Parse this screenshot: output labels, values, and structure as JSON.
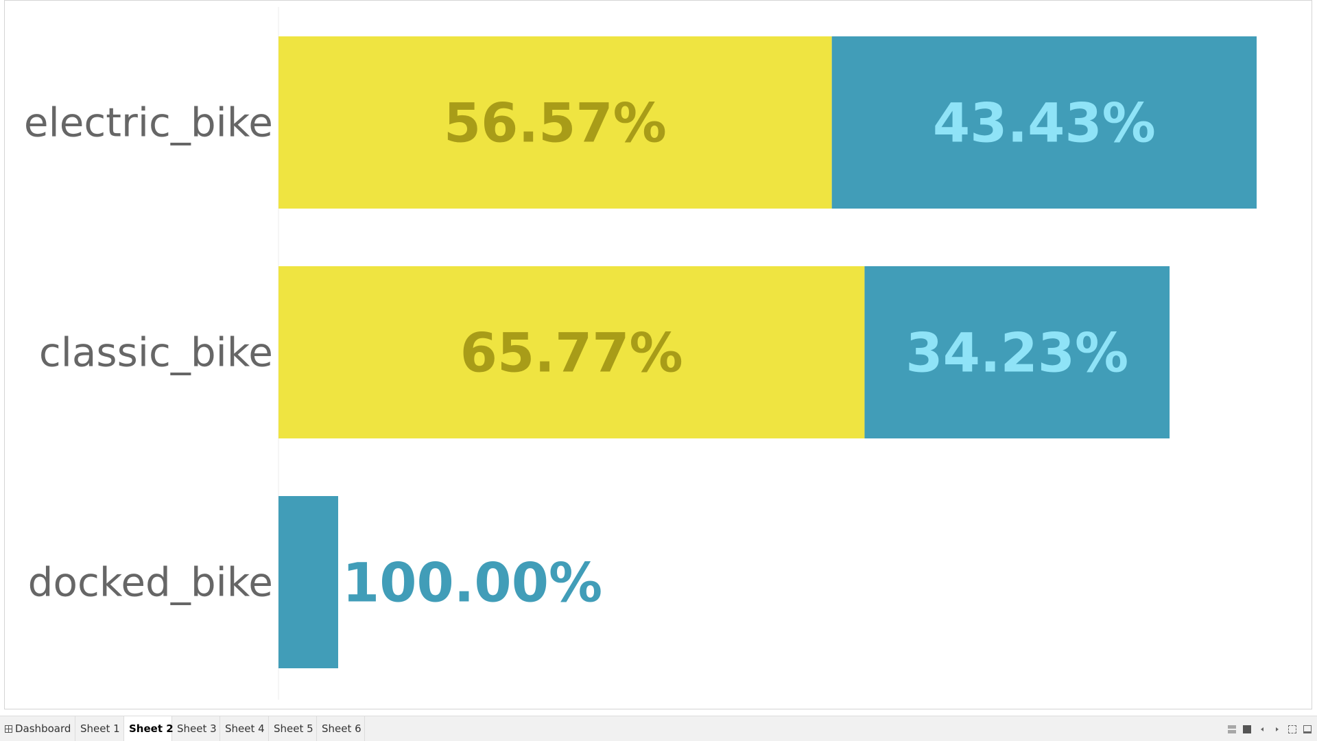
{
  "chart_data": {
    "type": "bar",
    "orientation": "horizontal",
    "stacked": true,
    "title": "",
    "xlabel": "",
    "ylabel": "",
    "grid": false,
    "categories": [
      "electric_bike",
      "classic_bike",
      "docked_bike"
    ],
    "totals": [
      100.0,
      91.1,
      6.1
    ],
    "segments": [
      [
        {
          "value": 56.57,
          "label": "56.57%",
          "fill": "#efe441",
          "text_color": "#a89c18"
        },
        {
          "value": 43.43,
          "label": "43.43%",
          "fill": "#419db8",
          "text_color": "#8fe3f7"
        }
      ],
      [
        {
          "value": 65.77,
          "label": "65.77%",
          "fill": "#efe441",
          "text_color": "#a89c18"
        },
        {
          "value": 34.23,
          "label": "34.23%",
          "fill": "#419db8",
          "text_color": "#8fe3f7"
        }
      ],
      [
        {
          "value": 100.0,
          "label": "100.00%",
          "fill": "#419db8",
          "text_color": "#419db8",
          "label_outside": true
        }
      ]
    ]
  },
  "tabs": [
    {
      "label": "Dashboard",
      "active": false,
      "icon": "dashboard-grid-icon"
    },
    {
      "label": "Sheet 1",
      "active": false
    },
    {
      "label": "Sheet 2",
      "active": true
    },
    {
      "label": "Sheet 3",
      "active": false
    },
    {
      "label": "Sheet 4",
      "active": false
    },
    {
      "label": "Sheet 5",
      "active": false
    },
    {
      "label": "Sheet 6",
      "active": false
    }
  ],
  "nav_controls": [
    "show-tabs-icon",
    "square-view-icon",
    "previous-sheet-icon",
    "next-sheet-icon",
    "fullscreen-icon",
    "presentation-mode-icon"
  ]
}
